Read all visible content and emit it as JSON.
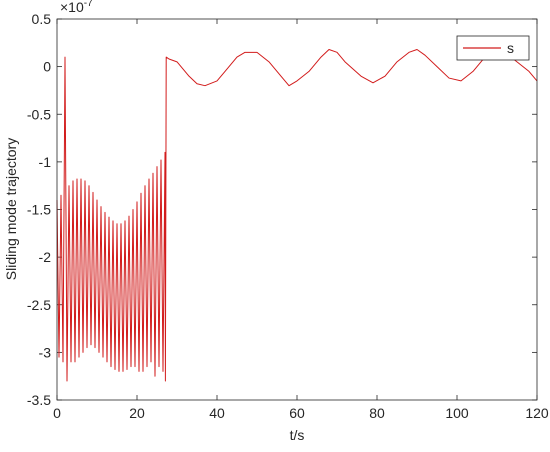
{
  "chart_data": {
    "type": "line",
    "ylabel": "Sliding mode trajectory",
    "xlabel": "t/s",
    "y_exponent": {
      "base": "×10",
      "power": "-7"
    },
    "xlim": [
      0,
      120
    ],
    "xticks": [
      0,
      20,
      40,
      60,
      80,
      100,
      120
    ],
    "ylim": [
      -3.5,
      0.5
    ],
    "yticks": [
      -3.5,
      -3,
      -2.5,
      -2,
      -1.5,
      -1,
      -0.5,
      0,
      0.5
    ],
    "grid": false,
    "legend": "top-right",
    "x": [
      0,
      0.5,
      1,
      1.5,
      2,
      2.5,
      3,
      3.5,
      4,
      4.5,
      5,
      5.5,
      6,
      6.5,
      7,
      7.5,
      8,
      8.5,
      9,
      9.5,
      10,
      10.5,
      11,
      11.5,
      12,
      12.5,
      13,
      13.5,
      14,
      14.5,
      15,
      15.5,
      16,
      16.5,
      17,
      17.5,
      18,
      18.5,
      19,
      19.5,
      20,
      20.5,
      21,
      21.5,
      22,
      22.5,
      23,
      23.5,
      24,
      24.5,
      25,
      25.5,
      26,
      26.5,
      27,
      27.1,
      27.3,
      28,
      30,
      33,
      35,
      37,
      40,
      42,
      45,
      47,
      50,
      53,
      56,
      58,
      60,
      63,
      66,
      68,
      70,
      72,
      76,
      79,
      82,
      85,
      88,
      90,
      92,
      95,
      98,
      101,
      104,
      107,
      110,
      112,
      115,
      118,
      120
    ],
    "series": [
      {
        "name": "s",
        "color": "#d21c1c",
        "values": [
          -1.4,
          -3.05,
          -1.35,
          -3.1,
          0.1,
          -3.3,
          -1.25,
          -3.1,
          -1.2,
          -3.1,
          -1.18,
          -3.05,
          -1.18,
          -3.0,
          -1.2,
          -2.95,
          -1.25,
          -2.92,
          -1.32,
          -2.95,
          -1.4,
          -3.0,
          -1.47,
          -3.05,
          -1.53,
          -3.1,
          -1.58,
          -3.15,
          -1.62,
          -3.18,
          -1.65,
          -3.2,
          -1.65,
          -3.2,
          -1.62,
          -3.18,
          -1.57,
          -3.15,
          -1.5,
          -3.15,
          -1.42,
          -3.2,
          -1.33,
          -3.2,
          -1.25,
          -3.15,
          -1.18,
          -3.1,
          -1.12,
          -3.25,
          -1.05,
          -3.15,
          -0.98,
          -3.2,
          -0.9,
          -3.3,
          0.1,
          0.08,
          0.05,
          -0.1,
          -0.18,
          -0.2,
          -0.15,
          -0.05,
          0.1,
          0.15,
          0.15,
          0.05,
          -0.1,
          -0.2,
          -0.15,
          -0.05,
          0.1,
          0.18,
          0.15,
          0.05,
          -0.1,
          -0.17,
          -0.1,
          0.05,
          0.15,
          0.18,
          0.12,
          0,
          -0.12,
          -0.15,
          -0.05,
          0.1,
          0.18,
          0.15,
          0.05,
          -0.05,
          -0.15
        ]
      }
    ]
  }
}
